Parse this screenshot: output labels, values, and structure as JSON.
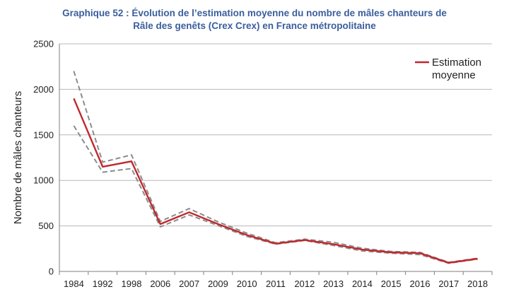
{
  "title_line1": "Graphique 52 : Évolution de l’estimation moyenne du nombre de mâles chanteurs de",
  "title_line2": "Râle des genêts (Crex Crex) en France métropolitaine",
  "colors": {
    "title": "#3a5e9c",
    "mean": "#c0282d",
    "bounds": "#8c8c8c",
    "grid": "#b8b8b8",
    "axis": "#7f7f7f"
  },
  "chart_data": {
    "type": "line",
    "categories": [
      "1984",
      "1992",
      "1998",
      "2006",
      "2007",
      "2009",
      "2010",
      "2011",
      "2012",
      "2013",
      "2014",
      "2015",
      "2016",
      "2017",
      "2018"
    ],
    "series": [
      {
        "name": "Estimation moyenne",
        "style": "solid",
        "values": [
          1900,
          1150,
          1210,
          520,
          650,
          520,
          400,
          305,
          345,
          300,
          240,
          210,
          200,
          95,
          140
        ]
      },
      {
        "style": "dashed",
        "values": [
          2200,
          1200,
          1280,
          550,
          690,
          545,
          420,
          315,
          355,
          320,
          255,
          220,
          210,
          100,
          145
        ]
      },
      {
        "style": "dashed",
        "values": [
          1600,
          1090,
          1130,
          490,
          620,
          505,
          385,
          300,
          340,
          285,
          225,
          200,
          185,
          90,
          135
        ]
      }
    ],
    "ylabel": "Nombre de mâles chanteurs",
    "xlabel": "",
    "ylim": [
      0,
      2500
    ],
    "yticks": [
      0,
      500,
      1000,
      1500,
      2000,
      2500
    ],
    "grid": "horizontal",
    "legend": {
      "position": "top-right",
      "line1": "Estimation",
      "line2": "moyenne"
    }
  }
}
